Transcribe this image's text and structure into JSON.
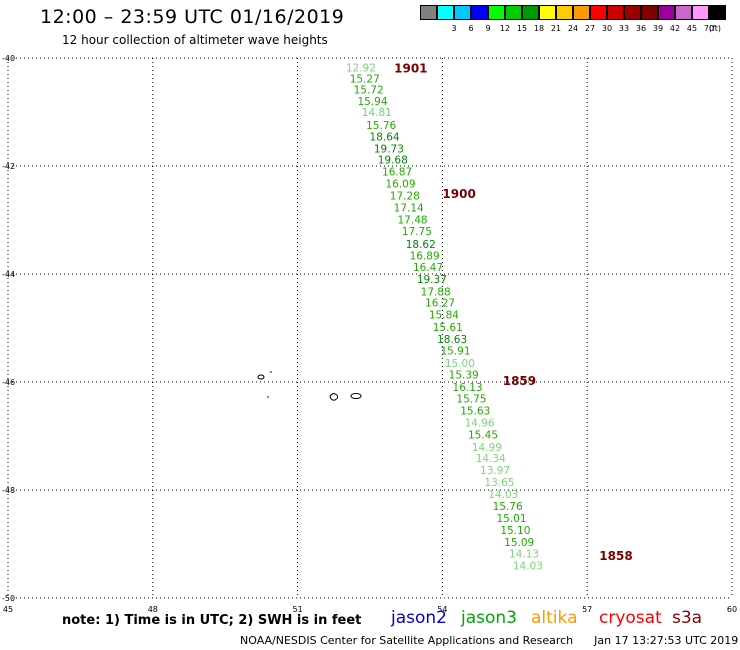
{
  "header": {
    "title": "12:00 – 23:59 UTC 01/16/2019",
    "subtitle": "12 hour collection of altimeter wave heights"
  },
  "color_scale": {
    "unit": "(ft)",
    "bins": [
      {
        "label": "",
        "color": "#808080"
      },
      {
        "label": "3",
        "color": "#00ffff"
      },
      {
        "label": "6",
        "color": "#00c8ff"
      },
      {
        "label": "9",
        "color": "#0000ff"
      },
      {
        "label": "12",
        "color": "#00ff00"
      },
      {
        "label": "15",
        "color": "#00cc00"
      },
      {
        "label": "18",
        "color": "#009900"
      },
      {
        "label": "21",
        "color": "#ffff00"
      },
      {
        "label": "24",
        "color": "#ffcc00"
      },
      {
        "label": "27",
        "color": "#ff9900"
      },
      {
        "label": "30",
        "color": "#ff0000"
      },
      {
        "label": "33",
        "color": "#cc0000"
      },
      {
        "label": "36",
        "color": "#990000"
      },
      {
        "label": "39",
        "color": "#800000"
      },
      {
        "label": "42",
        "color": "#990099"
      },
      {
        "label": "45",
        "color": "#cc66cc"
      },
      {
        "label": "70",
        "color": "#ff99ff"
      },
      {
        "label": "",
        "color": "#000000"
      }
    ]
  },
  "map": {
    "lon_range": [
      45,
      60
    ],
    "lat_range": [
      -50,
      -40
    ],
    "lon_ticks": [
      "45",
      "48",
      "51",
      "54",
      "57",
      "60"
    ],
    "lat_ticks": [
      "-40",
      "-42",
      "-44",
      "-46",
      "-48",
      "-50"
    ],
    "grid": "dotted"
  },
  "time_labels": [
    {
      "text": "1901",
      "lon": 53.0,
      "lat": -40.18
    },
    {
      "text": "1900",
      "lon": 54.0,
      "lat": -42.5
    },
    {
      "text": "1859",
      "lon": 55.25,
      "lat": -45.96
    },
    {
      "text": "1858",
      "lon": 57.25,
      "lat": -49.2
    }
  ],
  "observations": [
    {
      "value": "12.92",
      "lon": 52.0,
      "lat": -40.18,
      "color": "#7cd67c"
    },
    {
      "value": "15.27",
      "lon": 52.08,
      "lat": -40.38,
      "color": "#22aa00"
    },
    {
      "value": "15.72",
      "lon": 52.16,
      "lat": -40.58,
      "color": "#22aa00"
    },
    {
      "value": "15.94",
      "lon": 52.24,
      "lat": -40.8,
      "color": "#22aa00"
    },
    {
      "value": "14.81",
      "lon": 52.33,
      "lat": -41.0,
      "color": "#66dd66"
    },
    {
      "value": "15.76",
      "lon": 52.42,
      "lat": -41.24,
      "color": "#22aa00"
    },
    {
      "value": "18.64",
      "lon": 52.49,
      "lat": -41.45,
      "color": "#008800"
    },
    {
      "value": "19.73",
      "lon": 52.58,
      "lat": -41.68,
      "color": "#008800"
    },
    {
      "value": "19.68",
      "lon": 52.66,
      "lat": -41.88,
      "color": "#008800"
    },
    {
      "value": "16.87",
      "lon": 52.75,
      "lat": -42.1,
      "color": "#22aa00"
    },
    {
      "value": "16.09",
      "lon": 52.82,
      "lat": -42.32,
      "color": "#22aa00"
    },
    {
      "value": "17.28",
      "lon": 52.91,
      "lat": -42.55,
      "color": "#22aa00"
    },
    {
      "value": "17.14",
      "lon": 52.99,
      "lat": -42.77,
      "color": "#22aa00"
    },
    {
      "value": "17.48",
      "lon": 53.07,
      "lat": -42.99,
      "color": "#22aa00"
    },
    {
      "value": "17.75",
      "lon": 53.16,
      "lat": -43.2,
      "color": "#22aa00"
    },
    {
      "value": "18.62",
      "lon": 53.24,
      "lat": -43.44,
      "color": "#008800"
    },
    {
      "value": "16.89",
      "lon": 53.32,
      "lat": -43.66,
      "color": "#22aa00"
    },
    {
      "value": "16.47",
      "lon": 53.39,
      "lat": -43.87,
      "color": "#22aa00"
    },
    {
      "value": "19.37",
      "lon": 53.47,
      "lat": -44.09,
      "color": "#008800"
    },
    {
      "value": "17.88",
      "lon": 53.55,
      "lat": -44.32,
      "color": "#22aa00"
    },
    {
      "value": "16.27",
      "lon": 53.64,
      "lat": -44.53,
      "color": "#22aa00"
    },
    {
      "value": "15.84",
      "lon": 53.72,
      "lat": -44.75,
      "color": "#22aa00"
    },
    {
      "value": "15.61",
      "lon": 53.8,
      "lat": -44.98,
      "color": "#22aa00"
    },
    {
      "value": "18.63",
      "lon": 53.89,
      "lat": -45.2,
      "color": "#008800"
    },
    {
      "value": "15.91",
      "lon": 53.96,
      "lat": -45.42,
      "color": "#22aa00"
    },
    {
      "value": "15.00",
      "lon": 54.05,
      "lat": -45.65,
      "color": "#7cd67c"
    },
    {
      "value": "15.39",
      "lon": 54.13,
      "lat": -45.86,
      "color": "#22aa00"
    },
    {
      "value": "16.13",
      "lon": 54.21,
      "lat": -46.09,
      "color": "#22aa00"
    },
    {
      "value": "15.75",
      "lon": 54.29,
      "lat": -46.31,
      "color": "#22aa00"
    },
    {
      "value": "15.63",
      "lon": 54.37,
      "lat": -46.53,
      "color": "#22aa00"
    },
    {
      "value": "14.96",
      "lon": 54.46,
      "lat": -46.75,
      "color": "#7cd67c"
    },
    {
      "value": "15.45",
      "lon": 54.53,
      "lat": -46.97,
      "color": "#22aa00"
    },
    {
      "value": "14.99",
      "lon": 54.61,
      "lat": -47.2,
      "color": "#7cd67c"
    },
    {
      "value": "14.34",
      "lon": 54.69,
      "lat": -47.41,
      "color": "#7cd67c"
    },
    {
      "value": "13.97",
      "lon": 54.78,
      "lat": -47.63,
      "color": "#7cd67c"
    },
    {
      "value": "13.65",
      "lon": 54.87,
      "lat": -47.85,
      "color": "#7cd67c"
    },
    {
      "value": "14.03",
      "lon": 54.95,
      "lat": -48.07,
      "color": "#7cd67c"
    },
    {
      "value": "15.76",
      "lon": 55.04,
      "lat": -48.3,
      "color": "#22aa00"
    },
    {
      "value": "15.01",
      "lon": 55.12,
      "lat": -48.52,
      "color": "#22aa00"
    },
    {
      "value": "15.10",
      "lon": 55.2,
      "lat": -48.74,
      "color": "#22aa00"
    },
    {
      "value": "15.09",
      "lon": 55.28,
      "lat": -48.96,
      "color": "#22aa00"
    },
    {
      "value": "14.13",
      "lon": 55.38,
      "lat": -49.18,
      "color": "#7cd67c"
    },
    {
      "value": "14.03",
      "lon": 55.46,
      "lat": -49.4,
      "color": "#7cd67c"
    }
  ],
  "note": "note:  1) Time is in UTC;  2) SWH is in feet",
  "satellites": [
    {
      "name": "jason2",
      "color": "#0000dd"
    },
    {
      "name": "jason3",
      "color": "#00aa00"
    },
    {
      "name": "altika",
      "color": "#ff9900"
    },
    {
      "name": "cryosat",
      "color": "#ff0000"
    },
    {
      "name": "s3a",
      "color": "#880000"
    }
  ],
  "footer": {
    "credit": "NOAA/NESDIS Center for Satellite Applications and Research",
    "timestamp": "Jan 17 13:27:53 UTC 2019"
  }
}
